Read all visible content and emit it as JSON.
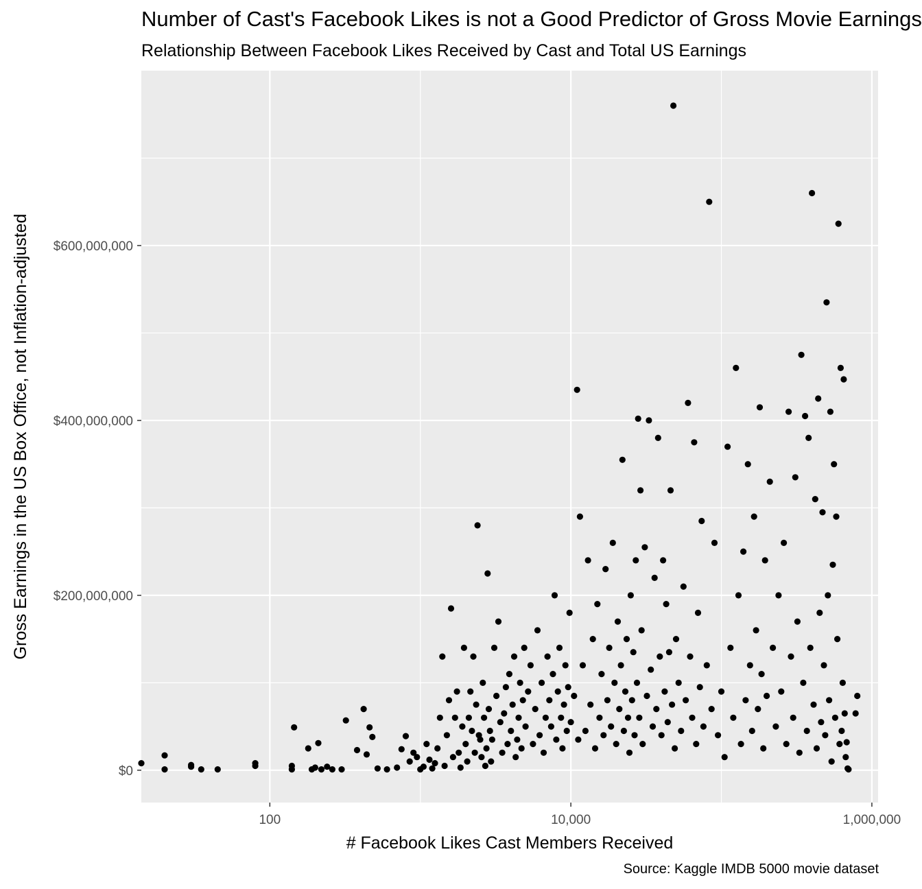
{
  "chart_data": {
    "type": "scatter",
    "title": "Number of Cast's Facebook Likes is not a Good Predictor of Gross Movie Earnings",
    "subtitle": "Relationship Between Facebook Likes Received by Cast and Total US Earnings",
    "caption": "Source: Kaggle IMDB 5000 movie dataset",
    "xlabel": "# Facebook Likes Cast Members Received",
    "ylabel": "Gross Earnings in the US Box Office, not Inflation-adjusted",
    "x_scale": "log10",
    "xlim": [
      14,
      1100000
    ],
    "ylim": [
      -37000000,
      800000000
    ],
    "x_ticks": [
      100,
      10000,
      1000000
    ],
    "x_tick_labels": [
      "100",
      "10,000",
      "1,000,000"
    ],
    "y_ticks": [
      0,
      200000000,
      400000000,
      600000000
    ],
    "y_tick_labels": [
      "$0",
      "$200,000,000",
      "$400,000,000",
      "$600,000,000"
    ],
    "grid": true,
    "panel_background": "#ebebeb",
    "grid_color": "#ffffff",
    "point_color": "#000000",
    "points": [
      [
        14,
        8000000
      ],
      [
        20,
        17000000
      ],
      [
        20,
        1000000
      ],
      [
        30,
        4000000
      ],
      [
        30,
        6000000
      ],
      [
        35,
        1000000
      ],
      [
        45,
        1000000
      ],
      [
        80,
        5000000
      ],
      [
        80,
        8000000
      ],
      [
        140,
        5000000
      ],
      [
        140,
        1000000
      ],
      [
        145,
        49000000
      ],
      [
        180,
        25000000
      ],
      [
        190,
        1000000
      ],
      [
        200,
        3000000
      ],
      [
        210,
        31000000
      ],
      [
        220,
        1000000
      ],
      [
        240,
        4000000
      ],
      [
        260,
        1000000
      ],
      [
        300,
        1000000
      ],
      [
        320,
        57000000
      ],
      [
        380,
        23000000
      ],
      [
        420,
        70000000
      ],
      [
        440,
        18000000
      ],
      [
        460,
        49000000
      ],
      [
        480,
        38000000
      ],
      [
        520,
        2000000
      ],
      [
        600,
        1000000
      ],
      [
        700,
        3000000
      ],
      [
        750,
        24000000
      ],
      [
        800,
        39000000
      ],
      [
        850,
        10000000
      ],
      [
        900,
        20000000
      ],
      [
        950,
        15000000
      ],
      [
        1000,
        1000000
      ],
      [
        1050,
        4000000
      ],
      [
        1100,
        30000000
      ],
      [
        1150,
        12000000
      ],
      [
        1200,
        2000000
      ],
      [
        1250,
        8000000
      ],
      [
        1300,
        25000000
      ],
      [
        1350,
        60000000
      ],
      [
        1400,
        130000000
      ],
      [
        1450,
        5000000
      ],
      [
        1500,
        40000000
      ],
      [
        1550,
        80000000
      ],
      [
        1600,
        185000000
      ],
      [
        1650,
        15000000
      ],
      [
        1700,
        60000000
      ],
      [
        1750,
        90000000
      ],
      [
        1800,
        20000000
      ],
      [
        1850,
        3000000
      ],
      [
        1900,
        50000000
      ],
      [
        1950,
        140000000
      ],
      [
        2000,
        30000000
      ],
      [
        2050,
        10000000
      ],
      [
        2100,
        60000000
      ],
      [
        2150,
        90000000
      ],
      [
        2200,
        45000000
      ],
      [
        2250,
        130000000
      ],
      [
        2300,
        20000000
      ],
      [
        2350,
        75000000
      ],
      [
        2400,
        280000000
      ],
      [
        2450,
        40000000
      ],
      [
        2500,
        35000000
      ],
      [
        2550,
        15000000
      ],
      [
        2600,
        100000000
      ],
      [
        2650,
        60000000
      ],
      [
        2700,
        5000000
      ],
      [
        2750,
        25000000
      ],
      [
        2800,
        225000000
      ],
      [
        2850,
        70000000
      ],
      [
        2900,
        45000000
      ],
      [
        2950,
        10000000
      ],
      [
        3000,
        35000000
      ],
      [
        3100,
        140000000
      ],
      [
        3200,
        85000000
      ],
      [
        3300,
        170000000
      ],
      [
        3400,
        55000000
      ],
      [
        3500,
        20000000
      ],
      [
        3600,
        65000000
      ],
      [
        3700,
        95000000
      ],
      [
        3800,
        30000000
      ],
      [
        3900,
        110000000
      ],
      [
        4000,
        45000000
      ],
      [
        4100,
        75000000
      ],
      [
        4200,
        130000000
      ],
      [
        4300,
        15000000
      ],
      [
        4400,
        35000000
      ],
      [
        4500,
        60000000
      ],
      [
        4600,
        100000000
      ],
      [
        4700,
        25000000
      ],
      [
        4800,
        80000000
      ],
      [
        4900,
        140000000
      ],
      [
        5000,
        50000000
      ],
      [
        5200,
        90000000
      ],
      [
        5400,
        120000000
      ],
      [
        5600,
        30000000
      ],
      [
        5800,
        70000000
      ],
      [
        6000,
        160000000
      ],
      [
        6200,
        40000000
      ],
      [
        6400,
        100000000
      ],
      [
        6600,
        20000000
      ],
      [
        6800,
        60000000
      ],
      [
        7000,
        130000000
      ],
      [
        7200,
        80000000
      ],
      [
        7400,
        50000000
      ],
      [
        7600,
        110000000
      ],
      [
        7800,
        200000000
      ],
      [
        8000,
        35000000
      ],
      [
        8200,
        90000000
      ],
      [
        8400,
        140000000
      ],
      [
        8600,
        60000000
      ],
      [
        8800,
        25000000
      ],
      [
        9000,
        75000000
      ],
      [
        9200,
        120000000
      ],
      [
        9400,
        45000000
      ],
      [
        9600,
        95000000
      ],
      [
        9800,
        180000000
      ],
      [
        10000,
        55000000
      ],
      [
        10500,
        85000000
      ],
      [
        11000,
        435000000
      ],
      [
        11200,
        35000000
      ],
      [
        11500,
        290000000
      ],
      [
        12000,
        120000000
      ],
      [
        12500,
        45000000
      ],
      [
        13000,
        240000000
      ],
      [
        13500,
        75000000
      ],
      [
        14000,
        150000000
      ],
      [
        14500,
        25000000
      ],
      [
        15000,
        190000000
      ],
      [
        15500,
        60000000
      ],
      [
        16000,
        110000000
      ],
      [
        16500,
        40000000
      ],
      [
        17000,
        230000000
      ],
      [
        17500,
        80000000
      ],
      [
        18000,
        140000000
      ],
      [
        18500,
        50000000
      ],
      [
        19000,
        260000000
      ],
      [
        19500,
        100000000
      ],
      [
        20000,
        30000000
      ],
      [
        20500,
        170000000
      ],
      [
        21000,
        70000000
      ],
      [
        21500,
        120000000
      ],
      [
        22000,
        355000000
      ],
      [
        22500,
        45000000
      ],
      [
        23000,
        90000000
      ],
      [
        23500,
        150000000
      ],
      [
        24000,
        60000000
      ],
      [
        24500,
        20000000
      ],
      [
        25000,
        200000000
      ],
      [
        25500,
        80000000
      ],
      [
        26000,
        135000000
      ],
      [
        26500,
        40000000
      ],
      [
        27000,
        240000000
      ],
      [
        27500,
        100000000
      ],
      [
        28000,
        402000000
      ],
      [
        28500,
        60000000
      ],
      [
        29000,
        320000000
      ],
      [
        29500,
        160000000
      ],
      [
        30000,
        30000000
      ],
      [
        31000,
        255000000
      ],
      [
        32000,
        85000000
      ],
      [
        33000,
        400000000
      ],
      [
        34000,
        115000000
      ],
      [
        35000,
        50000000
      ],
      [
        36000,
        220000000
      ],
      [
        37000,
        70000000
      ],
      [
        38000,
        380000000
      ],
      [
        39000,
        130000000
      ],
      [
        40000,
        40000000
      ],
      [
        41000,
        240000000
      ],
      [
        42000,
        90000000
      ],
      [
        43000,
        190000000
      ],
      [
        44000,
        55000000
      ],
      [
        45000,
        135000000
      ],
      [
        46000,
        320000000
      ],
      [
        47000,
        75000000
      ],
      [
        48000,
        760000000
      ],
      [
        49000,
        25000000
      ],
      [
        50000,
        150000000
      ],
      [
        52000,
        100000000
      ],
      [
        54000,
        45000000
      ],
      [
        56000,
        210000000
      ],
      [
        58000,
        80000000
      ],
      [
        60000,
        420000000
      ],
      [
        62000,
        130000000
      ],
      [
        64000,
        60000000
      ],
      [
        66000,
        375000000
      ],
      [
        68000,
        30000000
      ],
      [
        70000,
        180000000
      ],
      [
        72000,
        95000000
      ],
      [
        74000,
        285000000
      ],
      [
        76000,
        50000000
      ],
      [
        80000,
        120000000
      ],
      [
        83000,
        650000000
      ],
      [
        86000,
        70000000
      ],
      [
        90000,
        260000000
      ],
      [
        95000,
        40000000
      ],
      [
        100000,
        90000000
      ],
      [
        105000,
        15000000
      ],
      [
        110000,
        370000000
      ],
      [
        115000,
        140000000
      ],
      [
        120000,
        60000000
      ],
      [
        125000,
        460000000
      ],
      [
        130000,
        200000000
      ],
      [
        135000,
        30000000
      ],
      [
        140000,
        250000000
      ],
      [
        145000,
        80000000
      ],
      [
        150000,
        350000000
      ],
      [
        155000,
        120000000
      ],
      [
        160000,
        45000000
      ],
      [
        165000,
        290000000
      ],
      [
        170000,
        160000000
      ],
      [
        175000,
        70000000
      ],
      [
        180000,
        415000000
      ],
      [
        185000,
        110000000
      ],
      [
        190000,
        25000000
      ],
      [
        195000,
        240000000
      ],
      [
        200000,
        85000000
      ],
      [
        210000,
        330000000
      ],
      [
        220000,
        140000000
      ],
      [
        230000,
        50000000
      ],
      [
        240000,
        200000000
      ],
      [
        250000,
        90000000
      ],
      [
        260000,
        260000000
      ],
      [
        270000,
        30000000
      ],
      [
        280000,
        410000000
      ],
      [
        290000,
        130000000
      ],
      [
        300000,
        60000000
      ],
      [
        310000,
        335000000
      ],
      [
        320000,
        170000000
      ],
      [
        330000,
        20000000
      ],
      [
        340000,
        475000000
      ],
      [
        350000,
        100000000
      ],
      [
        360000,
        405000000
      ],
      [
        370000,
        45000000
      ],
      [
        380000,
        380000000
      ],
      [
        390000,
        140000000
      ],
      [
        400000,
        660000000
      ],
      [
        410000,
        75000000
      ],
      [
        420000,
        310000000
      ],
      [
        430000,
        25000000
      ],
      [
        440000,
        425000000
      ],
      [
        450000,
        180000000
      ],
      [
        460000,
        55000000
      ],
      [
        470000,
        295000000
      ],
      [
        480000,
        120000000
      ],
      [
        490000,
        40000000
      ],
      [
        500000,
        535000000
      ],
      [
        510000,
        200000000
      ],
      [
        520000,
        80000000
      ],
      [
        530000,
        410000000
      ],
      [
        540000,
        10000000
      ],
      [
        550000,
        235000000
      ],
      [
        560000,
        350000000
      ],
      [
        570000,
        60000000
      ],
      [
        580000,
        290000000
      ],
      [
        590000,
        150000000
      ],
      [
        600000,
        625000000
      ],
      [
        610000,
        30000000
      ],
      [
        620000,
        460000000
      ],
      [
        630000,
        45000000
      ],
      [
        640000,
        100000000
      ],
      [
        650000,
        447000000
      ],
      [
        660000,
        65000000
      ],
      [
        670000,
        15000000
      ],
      [
        680000,
        32000000
      ],
      [
        690000,
        2000000
      ],
      [
        700000,
        1000000
      ],
      [
        780000,
        65000000
      ],
      [
        800000,
        85000000
      ]
    ]
  }
}
